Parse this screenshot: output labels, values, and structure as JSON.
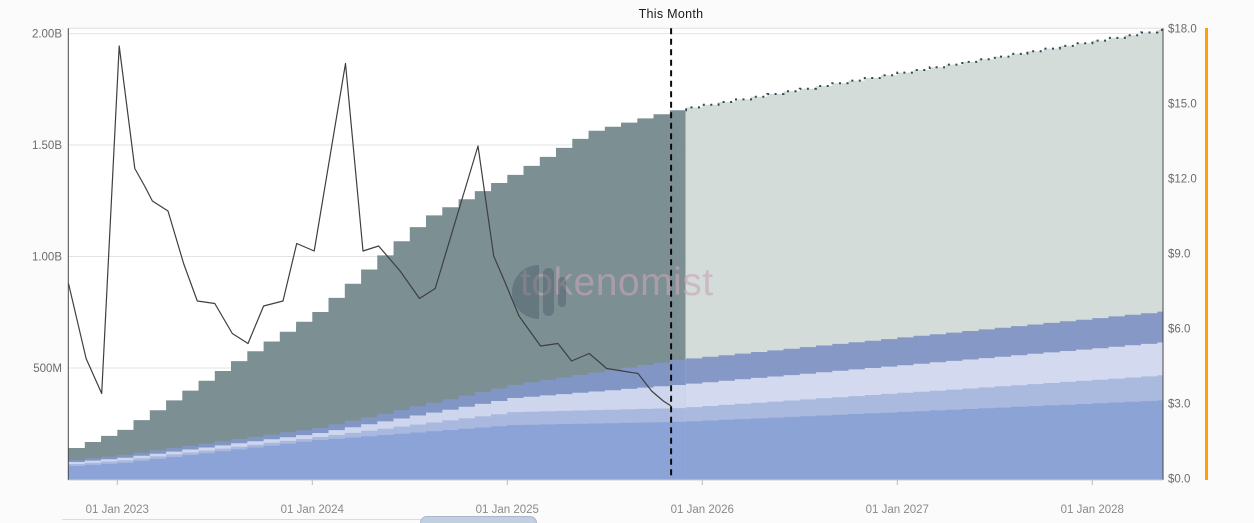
{
  "title": "This Month",
  "watermark": {
    "text": "tokenomist"
  },
  "axes": {
    "left": {
      "labels": [
        "2.00B",
        "1.50B",
        "1.00B",
        "500M"
      ],
      "values_B": [
        2.0,
        1.5,
        1.0,
        0.5
      ]
    },
    "right": {
      "labels": [
        "$18.0",
        "$15.0",
        "$12.0",
        "$9.0",
        "$6.0",
        "$3.0",
        "$0.0"
      ],
      "values_usd": [
        18,
        15,
        12,
        9,
        6,
        3,
        0
      ]
    },
    "x": {
      "labels": [
        "01 Jan 2023",
        "01 Jan 2024",
        "01 Jan 2025",
        "01 Jan 2026",
        "01 Jan 2027",
        "01 Jan 2028"
      ],
      "years": [
        2023,
        2024,
        2025,
        2026,
        2027,
        2028
      ]
    }
  },
  "chart_data": {
    "type": "area",
    "subtype": "stacked-monthly-steps-with-price-line",
    "title": "This Month",
    "x_range_years": [
      2022.75,
      2028.37
    ],
    "this_month_year": 2025.84,
    "past_future_boundary_year": 2025.915,
    "left_ylim_B": [
      0,
      2.0
    ],
    "right_ylim_usd": [
      0,
      18
    ],
    "grid": true,
    "future_edge_dotted_color": "#2e4a52",
    "this_month_line_color": "#0a0a0a",
    "series": [
      {
        "name": "band-blue",
        "color_past": "#8ba3d6",
        "color_future": "#8ba4d5",
        "points": [
          [
            2022.75,
            0.06
          ],
          [
            2023.0,
            0.075
          ],
          [
            2024.0,
            0.177
          ],
          [
            2025.0,
            0.244
          ],
          [
            2025.84,
            0.258
          ],
          [
            2028.37,
            0.356
          ]
        ]
      },
      {
        "name": "band-light-blue",
        "color_past": "#a9b8de",
        "color_future": "#aabade",
        "points": [
          [
            2022.75,
            0.069
          ],
          [
            2023.0,
            0.086
          ],
          [
            2024.0,
            0.19
          ],
          [
            2025.0,
            0.302
          ],
          [
            2025.84,
            0.32
          ],
          [
            2028.37,
            0.469
          ]
        ]
      },
      {
        "name": "band-lavender",
        "color_past": "#cdd6ed",
        "color_future": "#d3daf0",
        "points": [
          [
            2022.75,
            0.078
          ],
          [
            2023.0,
            0.097
          ],
          [
            2024.0,
            0.208
          ],
          [
            2025.0,
            0.365
          ],
          [
            2025.84,
            0.424
          ],
          [
            2028.37,
            0.617
          ]
        ]
      },
      {
        "name": "band-slate-blue",
        "color_past": "#8296c6",
        "color_future": "#8598c6",
        "points": [
          [
            2022.75,
            0.087
          ],
          [
            2023.0,
            0.11
          ],
          [
            2024.0,
            0.231
          ],
          [
            2025.0,
            0.424
          ],
          [
            2025.84,
            0.536
          ],
          [
            2028.37,
            0.756
          ]
        ]
      },
      {
        "name": "band-teal-gray",
        "color_past": "#7c9094",
        "color_future": "#d4dcda",
        "points": [
          [
            2022.75,
            0.141
          ],
          [
            2023.0,
            0.222
          ],
          [
            2024.0,
            0.751
          ],
          [
            2024.55,
            1.17
          ],
          [
            2025.0,
            1.366
          ],
          [
            2025.4,
            1.56
          ],
          [
            2025.84,
            1.658
          ],
          [
            2028.37,
            2.022
          ]
        ]
      }
    ],
    "price_line": {
      "name": "price-usd",
      "color": "#3f3f3f",
      "points": [
        [
          2022.75,
          7.8
        ],
        [
          2022.84,
          4.8
        ],
        [
          2022.92,
          3.4
        ],
        [
          2023.01,
          17.3
        ],
        [
          2023.09,
          12.4
        ],
        [
          2023.14,
          11.7
        ],
        [
          2023.18,
          11.1
        ],
        [
          2023.26,
          10.7
        ],
        [
          2023.34,
          8.6
        ],
        [
          2023.41,
          7.1
        ],
        [
          2023.5,
          7.0
        ],
        [
          2023.59,
          5.8
        ],
        [
          2023.67,
          5.4
        ],
        [
          2023.75,
          6.9
        ],
        [
          2023.85,
          7.1
        ],
        [
          2023.92,
          9.4
        ],
        [
          2024.01,
          9.1
        ],
        [
          2024.17,
          16.6
        ],
        [
          2024.26,
          9.1
        ],
        [
          2024.34,
          9.3
        ],
        [
          2024.45,
          8.3
        ],
        [
          2024.55,
          7.2
        ],
        [
          2024.63,
          7.6
        ],
        [
          2024.85,
          13.3
        ],
        [
          2024.93,
          8.9
        ],
        [
          2024.98,
          8.0
        ],
        [
          2025.06,
          6.5
        ],
        [
          2025.17,
          5.3
        ],
        [
          2025.26,
          5.4
        ],
        [
          2025.33,
          4.7
        ],
        [
          2025.42,
          5.0
        ],
        [
          2025.51,
          4.4
        ],
        [
          2025.59,
          4.3
        ],
        [
          2025.67,
          4.2
        ],
        [
          2025.74,
          3.5
        ],
        [
          2025.8,
          3.1
        ],
        [
          2025.84,
          2.9
        ]
      ]
    }
  },
  "misc": {
    "orange_marker_color": "#ffa000",
    "plot_background": "#ffffff",
    "gridline_color": "#e3e3e3",
    "axis_line_color": "#484848"
  }
}
